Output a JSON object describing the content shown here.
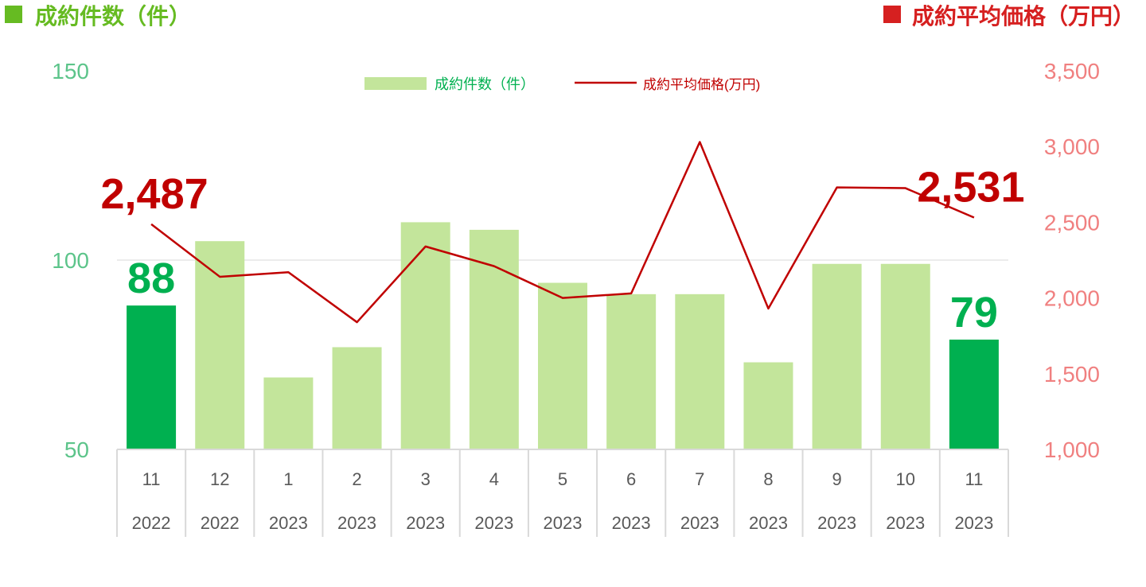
{
  "header": {
    "left_title": "成約件数（件）",
    "right_title": "成約平均価格（万円）"
  },
  "colors": {
    "bar_light": "#c3e59b",
    "bar_highlight": "#00b050",
    "line": "#c00000",
    "left_axis": "#5cc48a",
    "right_axis": "#f08080",
    "left_header": "#66bb22",
    "right_header": "#d62020"
  },
  "chart_data": {
    "type": "bar",
    "categories": [
      "11",
      "12",
      "1",
      "2",
      "3",
      "4",
      "5",
      "6",
      "7",
      "8",
      "9",
      "10",
      "11"
    ],
    "years": [
      "2022",
      "2022",
      "2023",
      "2023",
      "2023",
      "2023",
      "2023",
      "2023",
      "2023",
      "2023",
      "2023",
      "2023",
      "2023"
    ],
    "series": [
      {
        "name": "成約件数（件）",
        "type": "bar",
        "axis": "left",
        "values": [
          88,
          105,
          69,
          77,
          110,
          108,
          94,
          91,
          91,
          73,
          99,
          99,
          79
        ],
        "highlight": [
          0,
          12
        ]
      },
      {
        "name": "成約平均価格(万円)",
        "type": "line",
        "axis": "right",
        "values": [
          2487,
          2140,
          2170,
          1840,
          2340,
          2210,
          2000,
          2030,
          3030,
          1930,
          2730,
          2725,
          2531
        ]
      }
    ],
    "left_axis": {
      "ylim": [
        50,
        150
      ],
      "ticks": [
        "50",
        "100",
        "150"
      ],
      "tick_values": [
        50,
        100,
        150
      ]
    },
    "right_axis": {
      "ylim": [
        1000,
        3500
      ],
      "ticks": [
        "1,000",
        "1,500",
        "2,000",
        "2,500",
        "3,000",
        "3,500"
      ],
      "tick_values": [
        1000,
        1500,
        2000,
        2500,
        3000,
        3500
      ]
    },
    "gridline_at": 100,
    "legend_position": "top-center",
    "data_labels": [
      {
        "text": "88",
        "series": 0,
        "index": 0
      },
      {
        "text": "79",
        "series": 0,
        "index": 12
      },
      {
        "text": "2,487",
        "series": 1,
        "index": 0
      },
      {
        "text": "2,531",
        "series": 1,
        "index": 12
      }
    ]
  }
}
